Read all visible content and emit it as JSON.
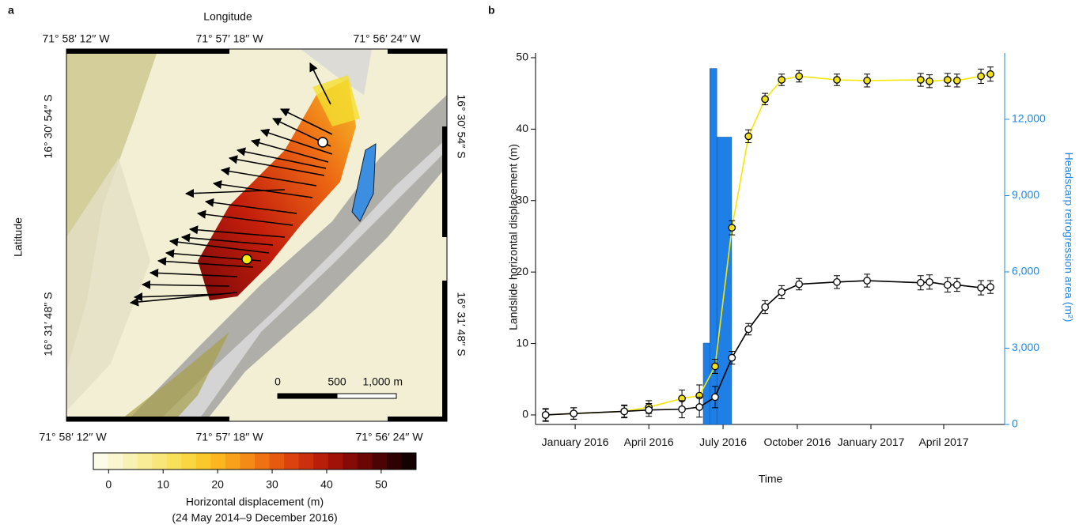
{
  "chart_data": [
    {
      "type": "map",
      "panel_label": "a",
      "xlabel": "Longitude",
      "ylabel": "Latitude",
      "top_ticks": [
        "71° 58′ 12′′ W",
        "71° 57′ 18′′ W",
        "71° 56′ 24′′ W"
      ],
      "bottom_ticks": [
        "71° 58′ 12′′ W",
        "71° 57′ 18′′ W",
        "71° 56′ 24′′ W"
      ],
      "left_ticks": [
        "16° 30′ 54′′ S",
        "16° 31′ 48′′ S"
      ],
      "right_ticks": [
        "16° 30′ 54′′ S",
        "16° 31′ 48′′ S"
      ],
      "scalebar": {
        "lim": [
          0,
          1000
        ],
        "ticks": [
          0,
          500,
          {
            "value": 1000,
            "label": "1,000 m"
          }
        ]
      },
      "colorbar": {
        "label": "Horizontal displacement (m)",
        "sublabel": "(24 May 2014–9 December 2016)",
        "lim": [
          -2.8,
          56.4
        ],
        "ticks": [
          0,
          10,
          20,
          30,
          40,
          50
        ],
        "colors": [
          "#fbfbe8",
          "#f9f6d0",
          "#f8f1b4",
          "#f8ec96",
          "#f8e678",
          "#f9e05a",
          "#fad640",
          "#fbc82c",
          "#fbb620",
          "#f9a11a",
          "#f58a16",
          "#ef7212",
          "#e65a10",
          "#db430e",
          "#cc2f0c",
          "#b81e0a",
          "#a01208",
          "#860a06",
          "#6a0604",
          "#4c0303",
          "#2e0202",
          "#150101"
        ]
      }
    },
    {
      "type": "line",
      "panel_label": "b",
      "xlabel": "Time",
      "ylabel": "Landslide horizontal displacement (m)",
      "y2label": "Headscarp retrogression area (m²)",
      "y2color": "#1e88e5",
      "x": [
        2015.9,
        2015.995,
        2016.166,
        2016.249,
        2016.361,
        2016.42,
        2016.473,
        2016.53,
        2016.586,
        2016.642,
        2016.698,
        2016.757,
        2016.885,
        2016.987,
        2017.168,
        2017.198,
        2017.259,
        2017.291,
        2017.372,
        2017.404
      ],
      "xlim": [
        2015.866,
        2017.452
      ],
      "xticks": [
        {
          "value": 2016.0,
          "label": "January 2016"
        },
        {
          "value": 2016.249,
          "label": "April 2016"
        },
        {
          "value": 2016.5,
          "label": "July 2016"
        },
        {
          "value": 2016.751,
          "label": "October 2016"
        },
        {
          "value": 2017.0,
          "label": "January 2017"
        },
        {
          "value": 2017.246,
          "label": "April 2017"
        }
      ],
      "ylim": [
        -1.33,
        50.66
      ],
      "yticks": [
        0,
        10,
        20,
        30,
        40,
        50
      ],
      "y2lim": [
        0,
        14610
      ],
      "y2ticks": [
        0,
        {
          "value": 3000,
          "label": "3,000"
        },
        {
          "value": 6000,
          "label": "6,000"
        },
        {
          "value": 9000,
          "label": "9,000"
        },
        {
          "value": 12000,
          "label": "12,000"
        }
      ],
      "series": [
        {
          "color": "#f5e800",
          "marker_fill": "#f2e21a",
          "values": [
            0,
            0.2,
            0.5,
            1.1,
            2.3,
            2.7,
            6.8,
            26.2,
            39.0,
            44.2,
            46.9,
            47.4,
            46.9,
            46.8,
            46.9,
            46.7,
            46.9,
            46.8,
            47.4,
            47.7
          ],
          "errors": [
            0.9,
            0.8,
            0.8,
            0.9,
            1.2,
            1.5,
            1.0,
            1.0,
            0.9,
            0.8,
            0.8,
            0.8,
            0.8,
            0.9,
            0.9,
            0.9,
            0.9,
            0.9,
            1.0,
            1.0
          ]
        },
        {
          "color": "#000000",
          "marker_fill": "#ffffff",
          "values": [
            0,
            0.2,
            0.5,
            0.7,
            0.8,
            1.1,
            2.5,
            8.0,
            12.0,
            15.1,
            17.2,
            18.3,
            18.6,
            18.8,
            18.5,
            18.6,
            18.2,
            18.2,
            17.8,
            17.9
          ],
          "errors": [
            0.8,
            0.8,
            0.9,
            0.9,
            1.2,
            1.4,
            1.5,
            0.9,
            0.8,
            0.9,
            0.9,
            0.8,
            0.9,
            0.9,
            1.0,
            1.0,
            1.0,
            0.9,
            1.0,
            0.9
          ]
        }
      ],
      "bars": {
        "color": "#1e7fe6",
        "axis": "y2",
        "bins": [
          2016.433,
          2016.455,
          2016.479,
          2016.529
        ],
        "values": [
          3200,
          14000,
          11300
        ]
      }
    }
  ]
}
